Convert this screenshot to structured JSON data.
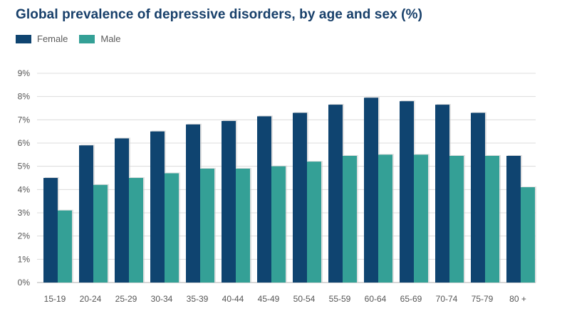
{
  "title": "Global prevalence of depressive disorders, by age and sex (%)",
  "legend": [
    {
      "label": "Female",
      "color": "#0f4470"
    },
    {
      "label": "Male",
      "color": "#34a096"
    }
  ],
  "chart_data": {
    "type": "bar",
    "title": "Global prevalence of depressive disorders, by age and sex (%)",
    "xlabel": "",
    "ylabel": "",
    "ylim": [
      0,
      9
    ],
    "yticks": [
      0,
      1,
      2,
      3,
      4,
      5,
      6,
      7,
      8,
      9
    ],
    "ytick_labels": [
      "0%",
      "1%",
      "2%",
      "3%",
      "4%",
      "5%",
      "6%",
      "7%",
      "8%",
      "9%"
    ],
    "grid": true,
    "legend_position": "top-left",
    "categories": [
      "15-19",
      "20-24",
      "25-29",
      "30-34",
      "35-39",
      "40-44",
      "45-49",
      "50-54",
      "55-59",
      "60-64",
      "65-69",
      "70-74",
      "75-79",
      "80 +"
    ],
    "series": [
      {
        "name": "Female",
        "color": "#0f4470",
        "values": [
          4.5,
          5.9,
          6.2,
          6.5,
          6.8,
          6.95,
          7.15,
          7.3,
          7.65,
          7.95,
          7.8,
          7.65,
          7.3,
          5.45
        ]
      },
      {
        "name": "Male",
        "color": "#34a096",
        "values": [
          3.1,
          4.2,
          4.5,
          4.7,
          4.9,
          4.9,
          5.0,
          5.2,
          5.45,
          5.5,
          5.5,
          5.45,
          5.45,
          4.1
        ]
      }
    ]
  }
}
